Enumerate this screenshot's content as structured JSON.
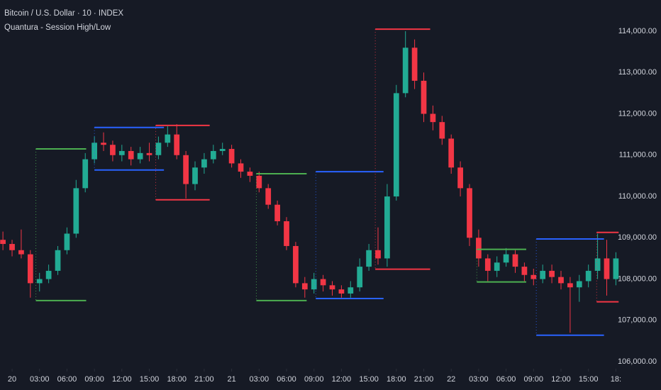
{
  "chart_data": {
    "type": "candlestick",
    "title": "Bitcoin / U.S. Dollar · 10 · INDEX",
    "subtitle": "Quantura - Session High/Low",
    "up_color": "#22ab94",
    "down_color": "#f23645",
    "x": [
      -1,
      0,
      1,
      2,
      3,
      4,
      5,
      6,
      7,
      8,
      9,
      10,
      11,
      12,
      13,
      14,
      15,
      16,
      17,
      18,
      19,
      20,
      21,
      22,
      23,
      24,
      25,
      26,
      27,
      28,
      29,
      30,
      31,
      32,
      33,
      34,
      35,
      36,
      37,
      38,
      39,
      40,
      41,
      42,
      43,
      44,
      45,
      46,
      47,
      48,
      49,
      50,
      51,
      52,
      53,
      54,
      55,
      56,
      57,
      58,
      59,
      60,
      61,
      62,
      63,
      64,
      65,
      66
    ],
    "open": [
      108950,
      108850,
      108700,
      108600,
      107900,
      108000,
      108200,
      108700,
      109100,
      110200,
      110900,
      111300,
      111250,
      111000,
      111100,
      110900,
      111050,
      111000,
      111300,
      111500,
      111000,
      110300,
      110700,
      110900,
      111100,
      111150,
      110800,
      110600,
      110500,
      110200,
      109800,
      109400,
      108800,
      107900,
      107750,
      108000,
      107850,
      107750,
      107650,
      107800,
      108300,
      108700,
      108500,
      110000,
      112500,
      113600,
      112800,
      112000,
      111800,
      111400,
      110700,
      110200,
      109000,
      108500,
      108200,
      108400,
      108600,
      108300,
      108100,
      108000,
      108200,
      108050,
      107900,
      107800,
      107950,
      108200,
      108500,
      108000
    ],
    "high": [
      109150,
      108950,
      109200,
      108700,
      108150,
      108350,
      108800,
      109250,
      110400,
      111050,
      111450,
      111550,
      111350,
      111250,
      111200,
      111200,
      111300,
      111450,
      111700,
      111750,
      111100,
      110850,
      111050,
      111250,
      111300,
      111250,
      110900,
      110700,
      110600,
      110300,
      109900,
      109500,
      108900,
      108050,
      108150,
      108100,
      107950,
      107850,
      107950,
      108500,
      108850,
      109250,
      110300,
      112700,
      114000,
      113800,
      113000,
      112200,
      111950,
      111500,
      110850,
      110300,
      109200,
      108600,
      108550,
      108750,
      108700,
      108400,
      108250,
      108350,
      108350,
      108200,
      108050,
      108100,
      108350,
      109100,
      108950,
      108650
    ],
    "low": [
      108700,
      108550,
      108500,
      107550,
      107700,
      107900,
      108100,
      108600,
      109000,
      110100,
      110800,
      111100,
      110850,
      110850,
      110750,
      110800,
      110850,
      110900,
      111200,
      110900,
      109950,
      110150,
      110550,
      110800,
      111000,
      110700,
      110450,
      110350,
      110100,
      109700,
      109300,
      108700,
      107800,
      107550,
      107650,
      107700,
      107600,
      107550,
      107550,
      107700,
      108200,
      108350,
      108300,
      109900,
      112400,
      112600,
      111800,
      111600,
      111250,
      110550,
      110000,
      108800,
      108300,
      107950,
      108050,
      108300,
      108150,
      107950,
      107850,
      107900,
      107900,
      107750,
      106700,
      107450,
      107800,
      108000,
      107600,
      107850
    ],
    "close": [
      108850,
      108700,
      108600,
      107900,
      108000,
      108200,
      108700,
      109100,
      110200,
      110900,
      111300,
      111250,
      111000,
      111100,
      110900,
      111050,
      111000,
      111300,
      111500,
      111000,
      110300,
      110700,
      110900,
      111100,
      111150,
      110800,
      110600,
      110500,
      110200,
      109800,
      109400,
      108800,
      107900,
      107750,
      108000,
      107850,
      107750,
      107650,
      107800,
      108300,
      108700,
      108500,
      110000,
      112500,
      113600,
      112800,
      112000,
      111800,
      111400,
      110700,
      110200,
      109000,
      108500,
      108200,
      108400,
      108600,
      108300,
      108100,
      108000,
      108200,
      108050,
      107900,
      107800,
      107950,
      108200,
      108500,
      108000,
      108500
    ],
    "sessions": [
      {
        "color": "#4caf50",
        "start": 2.6,
        "end": 8.1,
        "high": 111150,
        "low": 107480
      },
      {
        "color": "#2962ff",
        "start": 9.0,
        "end": 16.6,
        "high": 111670,
        "low": 110640
      },
      {
        "color": "#f23645",
        "start": 15.7,
        "end": 21.6,
        "high": 111720,
        "low": 109920
      },
      {
        "color": "#4caf50",
        "start": 26.7,
        "end": 32.2,
        "high": 110550,
        "low": 107480
      },
      {
        "color": "#2962ff",
        "start": 33.2,
        "end": 40.6,
        "high": 110600,
        "low": 107530
      },
      {
        "color": "#f23645",
        "start": 39.7,
        "end": 45.7,
        "high": 114050,
        "low": 108240
      },
      {
        "color": "#4caf50",
        "start": 50.8,
        "end": 56.2,
        "high": 108720,
        "low": 107930
      },
      {
        "color": "#2962ff",
        "start": 57.3,
        "end": 64.7,
        "high": 108970,
        "low": 106640
      },
      {
        "color": "#f23645",
        "start": 63.9,
        "end": 66.3,
        "high": 109130,
        "low": 107450
      }
    ],
    "xlim": [
      -1.32,
      66.9
    ],
    "ylim": [
      105830,
      114755
    ],
    "xticks": [
      {
        "value": 0,
        "label": "20"
      },
      {
        "value": 3,
        "label": "03:00"
      },
      {
        "value": 6,
        "label": "06:00"
      },
      {
        "value": 9,
        "label": "09:00"
      },
      {
        "value": 12,
        "label": "12:00"
      },
      {
        "value": 15,
        "label": "15:00"
      },
      {
        "value": 18,
        "label": "18:00"
      },
      {
        "value": 21,
        "label": "21:00"
      },
      {
        "value": 24,
        "label": "21"
      },
      {
        "value": 27,
        "label": "03:00"
      },
      {
        "value": 30,
        "label": "06:00"
      },
      {
        "value": 33,
        "label": "09:00"
      },
      {
        "value": 36,
        "label": "12:00"
      },
      {
        "value": 39,
        "label": "15:00"
      },
      {
        "value": 42,
        "label": "18:00"
      },
      {
        "value": 45,
        "label": "21:00"
      },
      {
        "value": 48,
        "label": "22"
      },
      {
        "value": 51,
        "label": "03:00"
      },
      {
        "value": 54,
        "label": "06:00"
      },
      {
        "value": 57,
        "label": "09:00"
      },
      {
        "value": 60,
        "label": "12:00"
      },
      {
        "value": 63,
        "label": "15:00"
      },
      {
        "value": 66,
        "label": "18:"
      }
    ],
    "yticks": [
      {
        "value": 106000,
        "label": "106,000.00"
      },
      {
        "value": 107000,
        "label": "107,000.00"
      },
      {
        "value": 108000,
        "label": "108,000.00"
      },
      {
        "value": 109000,
        "label": "109,000.00"
      },
      {
        "value": 110000,
        "label": "110,000.00"
      },
      {
        "value": 111000,
        "label": "111,000.00"
      },
      {
        "value": 112000,
        "label": "112,000.00"
      },
      {
        "value": 113000,
        "label": "113,000.00"
      },
      {
        "value": 114000,
        "label": "114,000.00"
      }
    ]
  }
}
